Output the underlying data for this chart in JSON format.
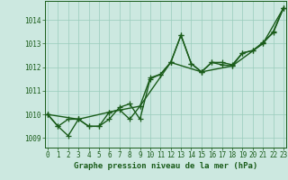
{
  "xlabel": "Graphe pression niveau de la mer (hPa)",
  "background_color": "#cce8e0",
  "plot_background": "#cce8e0",
  "grid_color": "#99ccbb",
  "line_color": "#1a5c1a",
  "marker": "+",
  "marker_size": 4,
  "line_width": 1.0,
  "xlim": [
    -0.3,
    23.3
  ],
  "ylim": [
    1008.6,
    1014.8
  ],
  "yticks": [
    1009,
    1010,
    1011,
    1012,
    1013,
    1014
  ],
  "xticks": [
    0,
    1,
    2,
    3,
    4,
    5,
    6,
    7,
    8,
    9,
    10,
    11,
    12,
    13,
    14,
    15,
    16,
    17,
    18,
    19,
    20,
    21,
    22,
    23
  ],
  "series": [
    {
      "x": [
        0,
        1,
        2,
        3,
        4,
        5,
        6,
        7,
        8,
        9,
        10,
        11,
        12,
        13,
        14,
        15,
        16,
        17,
        18,
        19,
        20,
        21,
        22,
        23
      ],
      "y": [
        1010.0,
        1009.5,
        1009.1,
        1009.8,
        1009.5,
        1009.5,
        1010.1,
        1010.2,
        1009.8,
        1010.35,
        1011.55,
        1011.7,
        1012.2,
        1013.35,
        1012.15,
        1011.8,
        1012.2,
        1012.1,
        1012.05,
        1012.6,
        1012.7,
        1013.0,
        1013.5,
        1014.5
      ]
    },
    {
      "x": [
        0,
        1,
        2,
        3,
        4,
        5,
        6,
        7,
        8,
        9,
        10,
        11,
        12,
        13,
        14,
        15,
        16,
        17,
        18,
        19,
        20,
        21,
        22,
        23
      ],
      "y": [
        1010.0,
        1009.5,
        1009.8,
        1009.8,
        1009.5,
        1009.5,
        1009.8,
        1010.3,
        1010.45,
        1009.8,
        1011.5,
        1011.7,
        1012.2,
        1013.35,
        1012.15,
        1011.8,
        1012.2,
        1012.2,
        1012.1,
        1012.6,
        1012.7,
        1013.05,
        1013.45,
        1014.5
      ]
    },
    {
      "x": [
        0,
        3,
        6,
        9,
        12,
        15,
        18,
        21,
        23
      ],
      "y": [
        1010.0,
        1009.8,
        1010.1,
        1010.35,
        1012.2,
        1011.8,
        1012.05,
        1013.0,
        1014.5
      ]
    }
  ],
  "tick_fontsize": 5.5,
  "label_fontsize": 6.5,
  "tick_color": "#1a5c1a",
  "label_color": "#1a5c1a",
  "spine_color": "#1a5c1a"
}
